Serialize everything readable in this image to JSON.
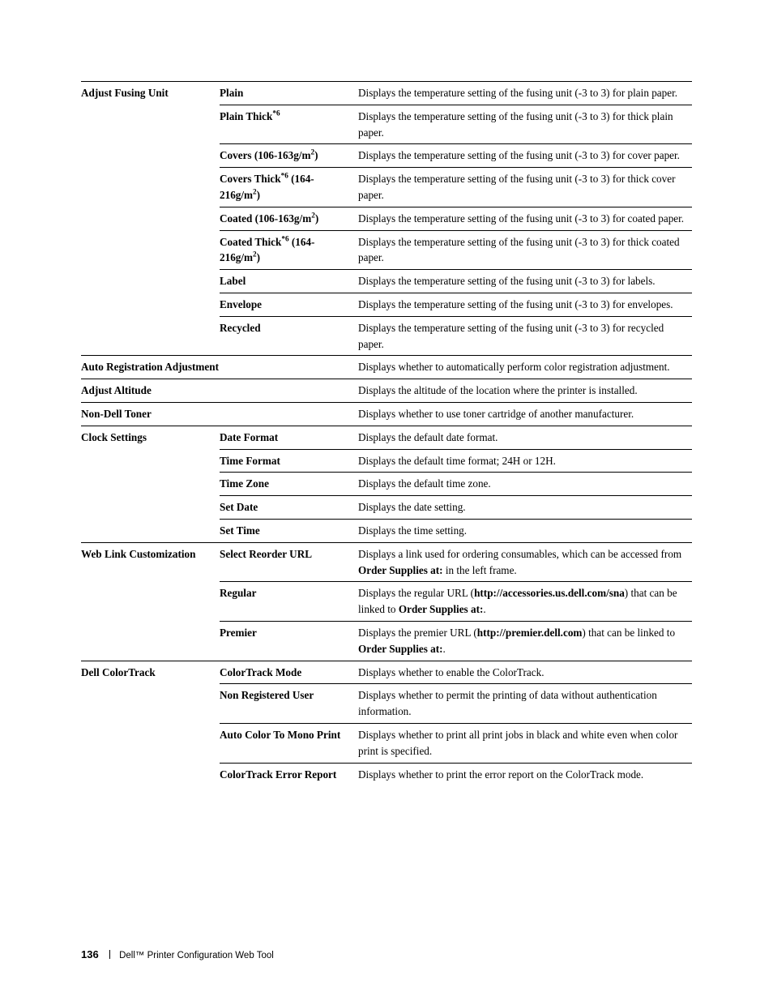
{
  "rows": [
    {
      "c1": "Adjust Fusing Unit",
      "c2": "Plain",
      "desc": "Displays the temperature setting of the fusing unit (-3 to 3) for plain paper.",
      "top": "full"
    },
    {
      "c1": "",
      "c2_html": "Plain Thick<sup>*6</sup>",
      "desc": "Displays the temperature setting of the fusing unit (-3 to 3) for thick plain paper.",
      "top": "col23"
    },
    {
      "c1": "",
      "c2_html": "Covers (106-163g/m<sup>2</sup>)",
      "desc": "Displays the temperature setting of the fusing unit (-3 to 3) for cover paper.",
      "top": "col23"
    },
    {
      "c1": "",
      "c2_html": "Covers Thick<sup>*6</sup> (164-216g/m<sup>2</sup>)",
      "desc": "Displays the temperature setting of the fusing unit (-3 to 3) for thick cover paper.",
      "top": "col23"
    },
    {
      "c1": "",
      "c2_html": "Coated (106-163g/m<sup>2</sup>)",
      "desc": "Displays the temperature setting of the fusing unit (-3 to 3) for coated paper.",
      "top": "col23"
    },
    {
      "c1": "",
      "c2_html": "Coated Thick<sup>*6</sup> (164-216g/m<sup>2</sup>)",
      "desc": "Displays the temperature setting of the fusing unit (-3 to 3) for thick coated paper.",
      "top": "col23"
    },
    {
      "c1": "",
      "c2": "Label",
      "desc": "Displays the temperature setting of the fusing unit (-3 to 3) for labels.",
      "top": "col23"
    },
    {
      "c1": "",
      "c2": "Envelope",
      "desc": "Displays the temperature setting of the fusing unit (-3 to 3) for envelopes.",
      "top": "col23"
    },
    {
      "c1": "",
      "c2": "Recycled",
      "desc": "Displays the temperature setting of the fusing unit (-3 to 3) for recycled paper.",
      "top": "col23"
    },
    {
      "c1": "Auto Registration Adjustment",
      "span12": true,
      "desc": "Displays whether to automatically perform color registration adjustment.",
      "top": "full"
    },
    {
      "c1": "Adjust Altitude",
      "span12": true,
      "desc": "Displays the altitude of the location where the printer is installed.",
      "top": "full"
    },
    {
      "c1": "Non-Dell Toner",
      "span12": true,
      "desc": "Displays whether to use toner cartridge of another manufacturer.",
      "top": "full"
    },
    {
      "c1": "Clock Settings",
      "c2": "Date Format",
      "desc": "Displays the default date format.",
      "top": "full"
    },
    {
      "c1": "",
      "c2": "Time Format",
      "desc": "Displays the default time format; 24H or 12H.",
      "top": "col23"
    },
    {
      "c1": "",
      "c2": "Time Zone",
      "desc": "Displays the default time zone.",
      "top": "col23"
    },
    {
      "c1": "",
      "c2": "Set Date",
      "desc": "Displays the date setting.",
      "top": "col23"
    },
    {
      "c1": "",
      "c2": "Set Time",
      "desc": "Displays the time setting.",
      "top": "col23"
    },
    {
      "c1": "Web Link Customization",
      "c2": "Select Reorder URL",
      "desc_html": "Displays a link used for ordering consumables, which can be accessed from <strong>Order Supplies at:</strong> in the left frame.",
      "top": "full"
    },
    {
      "c1": "",
      "c2": "Regular",
      "desc_html": "Displays the regular URL (<strong>http://accessories.us.dell.com/sna</strong>) that can be linked to <strong>Order Supplies at:</strong>.",
      "top": "col23"
    },
    {
      "c1": "",
      "c2": "Premier",
      "desc_html": "Displays the premier URL (<strong>http://premier.dell.com</strong>) that can be linked to <strong>Order Supplies at:</strong>.",
      "top": "col23"
    },
    {
      "c1": "Dell ColorTrack",
      "c2": "ColorTrack Mode",
      "desc": "Displays whether to enable the ColorTrack.",
      "top": "full"
    },
    {
      "c1": "",
      "c2": "Non Registered User",
      "desc": "Displays whether to permit the printing of data without authentication information.",
      "top": "col23"
    },
    {
      "c1": "",
      "c2": "Auto Color To Mono Print",
      "desc": "Displays whether to print all print jobs in black and white even when color print is specified.",
      "top": "col23"
    },
    {
      "c1": "",
      "c2": "ColorTrack Error Report",
      "desc": "Displays whether to print the error report on the ColorTrack mode.",
      "top": "col23"
    }
  ],
  "footer": {
    "page_number": "136",
    "section": "Dell™ Printer Configuration Web Tool"
  }
}
